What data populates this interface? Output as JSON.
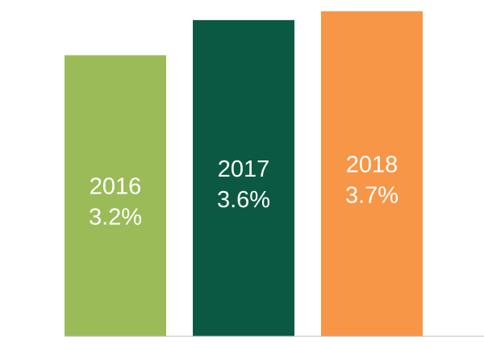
{
  "chart_data": {
    "type": "bar",
    "categories": [
      "2016",
      "2017",
      "2018"
    ],
    "values": [
      3.2,
      3.6,
      3.7
    ],
    "value_labels": [
      "3.2%",
      "3.6%",
      "3.7%"
    ],
    "colors": [
      "#9BBB59",
      "#0B5943",
      "#F79646"
    ],
    "axis_color": "#BFBFBF",
    "ylim": [
      0,
      3.7
    ],
    "grid": false,
    "legend": "none",
    "title": "",
    "xlabel": "",
    "ylabel": ""
  }
}
